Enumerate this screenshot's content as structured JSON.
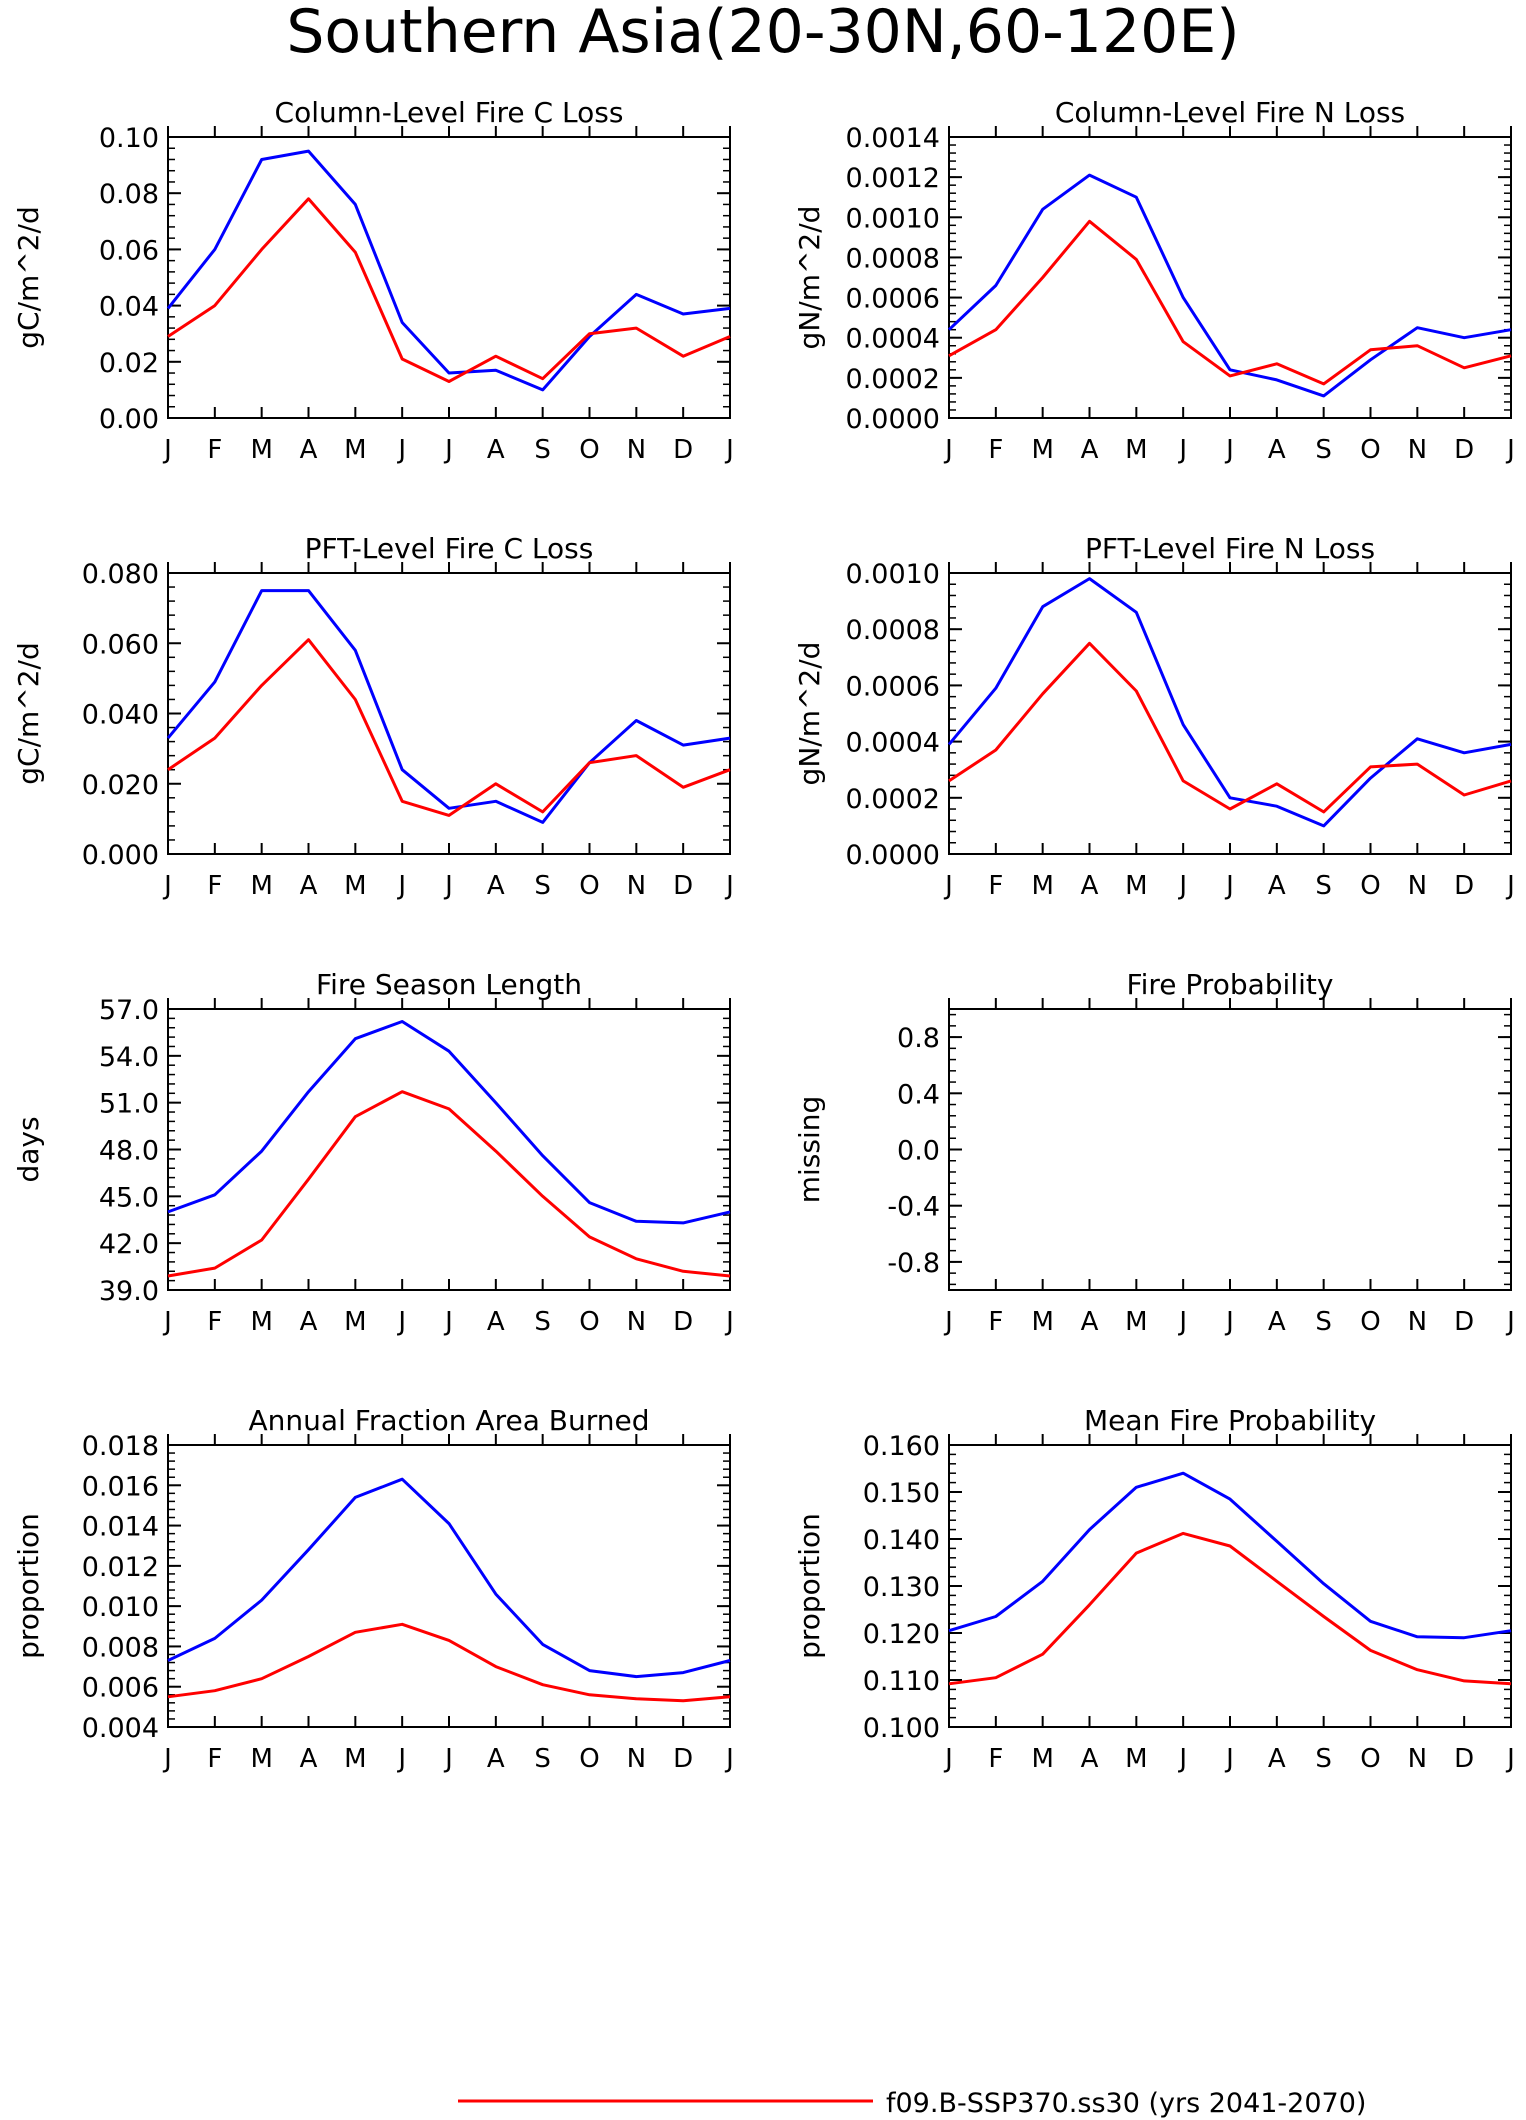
{
  "page_title": "Southern Asia(20-30N,60-120E)",
  "month_labels": [
    "J",
    "F",
    "M",
    "A",
    "M",
    "J",
    "J",
    "A",
    "S",
    "O",
    "N",
    "D",
    "J"
  ],
  "legend": {
    "entries": [
      {
        "label": "f09.B-SSP370.ss30 (yrs 2041-2070)",
        "color": "#ff0000"
      }
    ]
  },
  "colors": {
    "series_a": "#0000ff",
    "series_b": "#ff0000",
    "axis": "#000000"
  },
  "chart_data": [
    {
      "type": "line",
      "title": "Column-Level Fire C Loss",
      "ylabel": "gC/m^2/d",
      "ylim": [
        0,
        0.1
      ],
      "yticks": [
        "0.00",
        "0.02",
        "0.04",
        "0.06",
        "0.08",
        "0.10"
      ],
      "series": [
        {
          "color": "#0000ff",
          "values": [
            0.039,
            0.06,
            0.092,
            0.095,
            0.076,
            0.034,
            0.016,
            0.017,
            0.01,
            0.029,
            0.044,
            0.037,
            0.039
          ]
        },
        {
          "color": "#ff0000",
          "values": [
            0.029,
            0.04,
            0.06,
            0.078,
            0.059,
            0.021,
            0.013,
            0.022,
            0.014,
            0.03,
            0.032,
            0.022,
            0.029
          ]
        }
      ]
    },
    {
      "type": "line",
      "title": "Column-Level Fire N Loss",
      "ylabel": "gN/m^2/d",
      "ylim": [
        0,
        0.0014
      ],
      "yticks": [
        "0.0000",
        "0.0002",
        "0.0004",
        "0.0006",
        "0.0008",
        "0.0010",
        "0.0012",
        "0.0014"
      ],
      "series": [
        {
          "color": "#0000ff",
          "values": [
            0.00044,
            0.00066,
            0.00104,
            0.00121,
            0.0011,
            0.0006,
            0.00024,
            0.00019,
            0.00011,
            0.00029,
            0.00045,
            0.0004,
            0.00044
          ]
        },
        {
          "color": "#ff0000",
          "values": [
            0.00031,
            0.00044,
            0.0007,
            0.00098,
            0.00079,
            0.00038,
            0.00021,
            0.00027,
            0.00017,
            0.00034,
            0.00036,
            0.00025,
            0.00031
          ]
        }
      ]
    },
    {
      "type": "line",
      "title": "PFT-Level Fire C Loss",
      "ylabel": "gC/m^2/d",
      "ylim": [
        0,
        0.08
      ],
      "yticks": [
        "0.000",
        "0.020",
        "0.040",
        "0.060",
        "0.080"
      ],
      "series": [
        {
          "color": "#0000ff",
          "values": [
            0.033,
            0.049,
            0.075,
            0.075,
            0.058,
            0.024,
            0.013,
            0.015,
            0.009,
            0.026,
            0.038,
            0.031,
            0.033
          ]
        },
        {
          "color": "#ff0000",
          "values": [
            0.024,
            0.033,
            0.048,
            0.061,
            0.044,
            0.015,
            0.011,
            0.02,
            0.012,
            0.026,
            0.028,
            0.019,
            0.024
          ]
        }
      ]
    },
    {
      "type": "line",
      "title": "PFT-Level Fire N Loss",
      "ylabel": "gN/m^2/d",
      "ylim": [
        0,
        0.001
      ],
      "yticks": [
        "0.0000",
        "0.0002",
        "0.0004",
        "0.0006",
        "0.0008",
        "0.0010"
      ],
      "series": [
        {
          "color": "#0000ff",
          "values": [
            0.00039,
            0.00059,
            0.00088,
            0.00098,
            0.00086,
            0.00046,
            0.0002,
            0.00017,
            0.0001,
            0.00027,
            0.00041,
            0.00036,
            0.00039
          ]
        },
        {
          "color": "#ff0000",
          "values": [
            0.00026,
            0.00037,
            0.00057,
            0.00075,
            0.00058,
            0.00026,
            0.00016,
            0.00025,
            0.00015,
            0.00031,
            0.00032,
            0.00021,
            0.00026
          ]
        }
      ]
    },
    {
      "type": "line",
      "title": "Fire Season Length",
      "ylabel": "days",
      "ylim": [
        39,
        57
      ],
      "yticks": [
        "39.0",
        "42.0",
        "45.0",
        "48.0",
        "51.0",
        "54.0",
        "57.0"
      ],
      "series": [
        {
          "color": "#0000ff",
          "values": [
            44.0,
            45.1,
            47.9,
            51.7,
            55.1,
            56.2,
            54.3,
            51.0,
            47.6,
            44.6,
            43.4,
            43.3,
            44.0
          ]
        },
        {
          "color": "#ff0000",
          "values": [
            39.9,
            40.4,
            42.2,
            46.1,
            50.1,
            51.7,
            50.6,
            47.9,
            45.0,
            42.4,
            41.0,
            40.2,
            39.9
          ]
        }
      ]
    },
    {
      "type": "line",
      "title": "Fire Probability",
      "ylabel": "missing",
      "ylim": [
        -1.0,
        1.0
      ],
      "yticks": [
        "-0.8",
        "-0.4",
        "0.0",
        "0.4",
        "0.8"
      ],
      "series": []
    },
    {
      "type": "line",
      "title": "Annual Fraction Area Burned",
      "ylabel": "proportion",
      "ylim": [
        0.004,
        0.018
      ],
      "yticks": [
        "0.004",
        "0.006",
        "0.008",
        "0.010",
        "0.012",
        "0.014",
        "0.016",
        "0.018"
      ],
      "series": [
        {
          "color": "#0000ff",
          "values": [
            0.0073,
            0.0084,
            0.0103,
            0.0128,
            0.0154,
            0.0163,
            0.0141,
            0.0106,
            0.0081,
            0.0068,
            0.0065,
            0.0067,
            0.0073
          ]
        },
        {
          "color": "#ff0000",
          "values": [
            0.0055,
            0.0058,
            0.0064,
            0.0075,
            0.0087,
            0.0091,
            0.0083,
            0.007,
            0.0061,
            0.0056,
            0.0054,
            0.0053,
            0.0055
          ]
        }
      ]
    },
    {
      "type": "line",
      "title": "Mean Fire Probability",
      "ylabel": "proportion",
      "ylim": [
        0.1,
        0.16
      ],
      "yticks": [
        "0.100",
        "0.110",
        "0.120",
        "0.130",
        "0.140",
        "0.150",
        "0.160"
      ],
      "series": [
        {
          "color": "#0000ff",
          "values": [
            0.1205,
            0.1235,
            0.131,
            0.142,
            0.151,
            0.154,
            0.1485,
            0.1395,
            0.1305,
            0.1225,
            0.1192,
            0.119,
            0.1205
          ]
        },
        {
          "color": "#ff0000",
          "values": [
            0.1092,
            0.1105,
            0.1155,
            0.126,
            0.137,
            0.1412,
            0.1385,
            0.131,
            0.1235,
            0.1163,
            0.1122,
            0.1098,
            0.1092
          ]
        }
      ]
    }
  ]
}
